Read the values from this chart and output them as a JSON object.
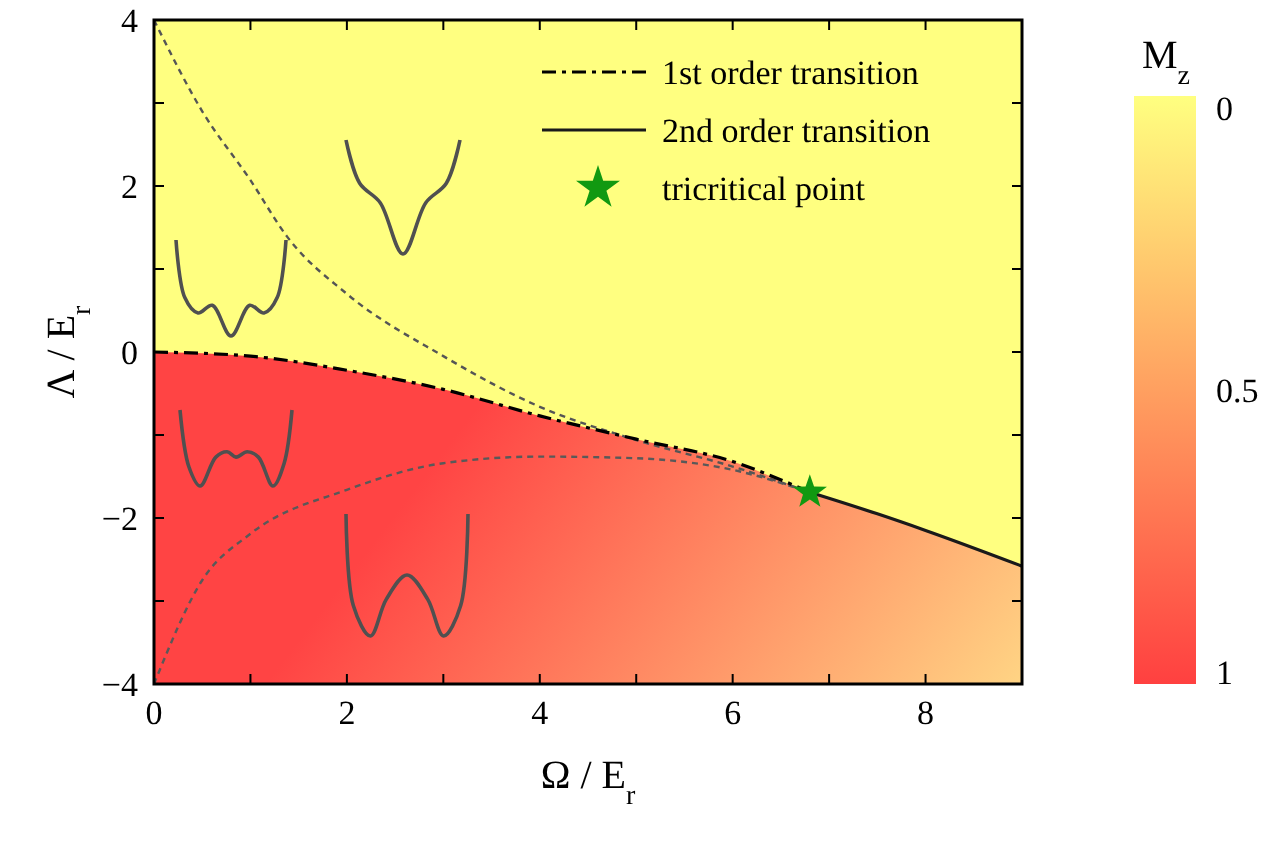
{
  "chart_data": {
    "type": "line",
    "xlabel": "Ω / E$_{r}$",
    "ylabel": "Λ / E$_{r}$",
    "clabel": "M$_{z}$",
    "clim": [
      0,
      1
    ],
    "cticks": [
      0,
      0.5,
      1
    ],
    "xlim": [
      0,
      9
    ],
    "ylim": [
      -4,
      4
    ],
    "xticks": [
      0,
      {
        "value": 1,
        "label": null
      },
      2,
      {
        "value": 3,
        "label": null
      },
      4,
      {
        "value": 5,
        "label": null
      },
      6,
      {
        "value": 7,
        "label": null
      },
      8
    ],
    "yticks": [
      -4,
      {
        "value": -3,
        "label": null
      },
      -2,
      {
        "value": -1,
        "label": null
      },
      0,
      {
        "value": 1,
        "label": null
      },
      2,
      {
        "value": 3,
        "label": null
      },
      4
    ],
    "legend": "top right",
    "grid": false,
    "series": [
      {
        "color": "#555555",
        "line_style": "dashed",
        "x": [
          0,
          0.5,
          1,
          1.38,
          2,
          3,
          4,
          5,
          6,
          6.8
        ],
        "values": [
          4,
          2.9,
          2.07,
          1.39,
          0.7,
          -0.05,
          -0.66,
          -1.06,
          -1.38,
          -1.69
        ]
      },
      {
        "color": "#595959",
        "line_style": "dashed",
        "x": [
          0,
          0.5,
          1,
          2,
          3,
          4,
          5,
          6,
          6.8
        ],
        "values": [
          -4,
          -2.75,
          -2.19,
          -1.66,
          -1.34,
          -1.26,
          -1.28,
          -1.42,
          -1.69
        ]
      },
      {
        "name": "1st order transition",
        "color": "#000000",
        "line_style": "dashdot",
        "x": [
          0,
          1,
          2,
          3,
          4,
          5,
          6,
          6.8
        ],
        "values": [
          0,
          -0.05,
          -0.22,
          -0.45,
          -0.77,
          -1.05,
          -1.32,
          -1.69
        ]
      },
      {
        "name": "2nd order transition",
        "color": "#1a1a1a",
        "line_style": "solid",
        "x": [
          6.8,
          7.5,
          8,
          9
        ],
        "values": [
          -1.69,
          -1.95,
          -2.15,
          -2.58
        ]
      },
      {
        "type": "scatter",
        "name": "tricritical point",
        "color": "#119911",
        "marker": "star",
        "x": [
          6.8
        ],
        "values": [
          -1.69
        ]
      }
    ]
  }
}
